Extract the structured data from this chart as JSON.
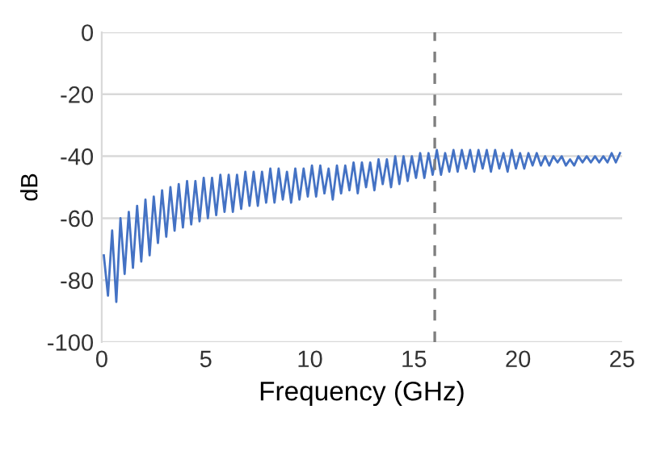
{
  "chart_data": {
    "type": "line",
    "xlabel": "Frequency (GHz)",
    "ylabel": "dB",
    "x": [
      0.1,
      0.3,
      0.5,
      0.7,
      0.9,
      1.1,
      1.3,
      1.5,
      1.7,
      1.9,
      2.1,
      2.3,
      2.5,
      2.7,
      2.9,
      3.1,
      3.3,
      3.5,
      3.7,
      3.9,
      4.1,
      4.3,
      4.5,
      4.7,
      4.9,
      5.1,
      5.3,
      5.5,
      5.7,
      5.9,
      6.1,
      6.3,
      6.5,
      6.7,
      6.9,
      7.1,
      7.3,
      7.5,
      7.7,
      7.9,
      8.1,
      8.3,
      8.5,
      8.7,
      8.9,
      9.1,
      9.3,
      9.5,
      9.7,
      9.9,
      10.1,
      10.3,
      10.5,
      10.7,
      10.9,
      11.1,
      11.3,
      11.5,
      11.7,
      11.9,
      12.1,
      12.3,
      12.5,
      12.7,
      12.9,
      13.1,
      13.3,
      13.5,
      13.7,
      13.9,
      14.1,
      14.3,
      14.5,
      14.7,
      14.9,
      15.1,
      15.3,
      15.5,
      15.7,
      15.9,
      16.1,
      16.3,
      16.5,
      16.7,
      16.9,
      17.1,
      17.3,
      17.5,
      17.7,
      17.9,
      18.1,
      18.3,
      18.5,
      18.7,
      18.9,
      19.1,
      19.3,
      19.5,
      19.7,
      19.9,
      20.1,
      20.3,
      20.5,
      20.7,
      20.9,
      21.1,
      21.3,
      21.5,
      21.7,
      21.9,
      22.1,
      22.3,
      22.5,
      22.7,
      22.9,
      23.1,
      23.3,
      23.5,
      23.7,
      23.9,
      24.1,
      24.3,
      24.5,
      24.7,
      24.9
    ],
    "series": [
      {
        "color": "#4472c4",
        "values": [
          -72,
          -85,
          -64,
          -87,
          -60,
          -78,
          -58,
          -76,
          -56,
          -74,
          -54,
          -72,
          -53,
          -68,
          -51,
          -66,
          -50,
          -64,
          -49,
          -63,
          -48,
          -62,
          -48,
          -61,
          -47,
          -60,
          -47,
          -59,
          -46,
          -58,
          -46,
          -58,
          -46,
          -57,
          -45,
          -56,
          -45,
          -56,
          -45,
          -55,
          -44,
          -55,
          -44,
          -54,
          -45,
          -55,
          -44,
          -54,
          -44,
          -53,
          -43,
          -53,
          -43,
          -52,
          -44,
          -54,
          -43,
          -52,
          -43,
          -51,
          -42,
          -52,
          -42,
          -50,
          -42,
          -51,
          -41,
          -49,
          -41,
          -50,
          -40,
          -49,
          -40,
          -48,
          -40,
          -47,
          -39,
          -47,
          -39,
          -46,
          -38,
          -46,
          -39,
          -45,
          -38,
          -45,
          -38,
          -44,
          -38,
          -45,
          -38,
          -44,
          -38,
          -45,
          -38,
          -44,
          -39,
          -45,
          -38,
          -44,
          -39,
          -44,
          -39,
          -43,
          -39,
          -43,
          -40,
          -43,
          -40,
          -42,
          -40,
          -43,
          -41,
          -43,
          -40,
          -42,
          -40,
          -42,
          -40,
          -42,
          -40,
          -42,
          -39,
          -42,
          -39
        ]
      }
    ],
    "xlim": [
      0,
      25
    ],
    "ylim": [
      -100,
      0
    ],
    "xticks": [
      0,
      5,
      10,
      15,
      20,
      25
    ],
    "yticks": [
      -100,
      -80,
      -60,
      -40,
      -20,
      0
    ],
    "grid": "y",
    "marker": "none",
    "line_style": "solid",
    "ref_lines": [
      {
        "axis": "x",
        "value": 16,
        "color": "#7f7f7f",
        "line_style": "dashed"
      }
    ]
  }
}
